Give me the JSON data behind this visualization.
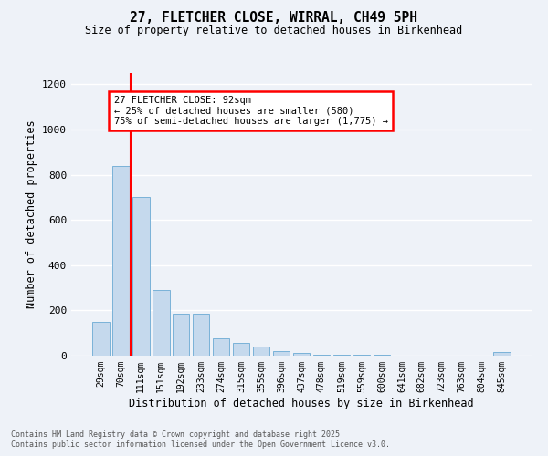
{
  "title1": "27, FLETCHER CLOSE, WIRRAL, CH49 5PH",
  "title2": "Size of property relative to detached houses in Birkenhead",
  "xlabel": "Distribution of detached houses by size in Birkenhead",
  "ylabel": "Number of detached properties",
  "bar_labels": [
    "29sqm",
    "70sqm",
    "111sqm",
    "151sqm",
    "192sqm",
    "233sqm",
    "274sqm",
    "315sqm",
    "355sqm",
    "396sqm",
    "437sqm",
    "478sqm",
    "519sqm",
    "559sqm",
    "600sqm",
    "641sqm",
    "682sqm",
    "723sqm",
    "763sqm",
    "804sqm",
    "845sqm"
  ],
  "bar_values": [
    148,
    840,
    700,
    290,
    185,
    185,
    75,
    55,
    40,
    20,
    12,
    5,
    5,
    5,
    5,
    2,
    2,
    1,
    1,
    0,
    15
  ],
  "bar_color": "#c5d9ed",
  "bar_edgecolor": "#6aaad4",
  "annotation_text": "27 FLETCHER CLOSE: 92sqm\n← 25% of detached houses are smaller (580)\n75% of semi-detached houses are larger (1,775) →",
  "redline_x": 1.5,
  "ylim": [
    0,
    1250
  ],
  "yticks": [
    0,
    200,
    400,
    600,
    800,
    1000,
    1200
  ],
  "footer1": "Contains HM Land Registry data © Crown copyright and database right 2025.",
  "footer2": "Contains public sector information licensed under the Open Government Licence v3.0.",
  "bg_color": "#eef2f8",
  "grid_color": "#ffffff"
}
